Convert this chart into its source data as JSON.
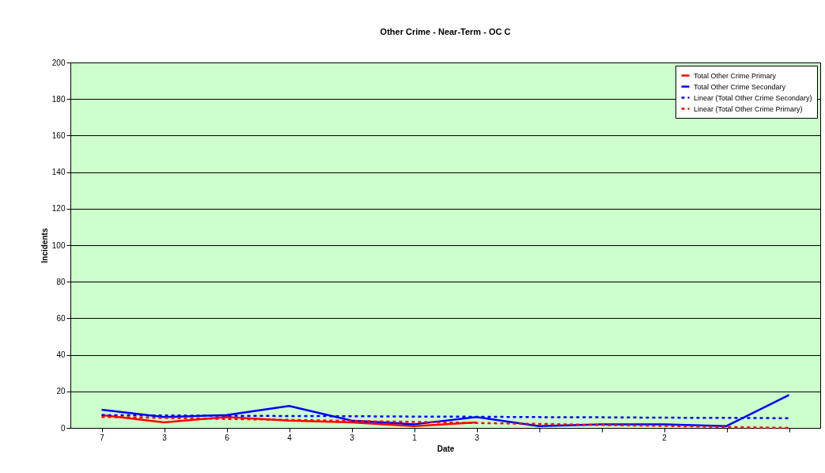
{
  "chart_data": {
    "type": "line",
    "title": "Other Crime - Near-Term - OC C",
    "xlabel": "Date",
    "ylabel": "Incidents",
    "categories": [
      "7",
      "3",
      "6",
      "4",
      "3",
      "1",
      "3",
      null,
      null,
      "2",
      null,
      null
    ],
    "series": [
      {
        "name": "Total Other Crime Primary",
        "color": "#ff0000",
        "values": [
          7,
          3,
          6,
          4,
          3,
          1,
          3,
          null,
          null,
          null,
          null,
          null
        ]
      },
      {
        "name": "Total Other Crime Secondary",
        "color": "#0000ff",
        "values": [
          10,
          6,
          7,
          12,
          4,
          2,
          6,
          1,
          2,
          2,
          1,
          18
        ]
      },
      {
        "name": "Linear (Total Other Crime Secondary)",
        "color": "#0000ff",
        "line_style": "dashed",
        "values": [
          7.0,
          6.8,
          6.7,
          6.5,
          6.4,
          6.2,
          6.1,
          5.9,
          5.8,
          5.6,
          5.5,
          5.3
        ]
      },
      {
        "name": "Linear (Total Other Crime Primary)",
        "color": "#ff0000",
        "line_style": "dashed",
        "values": [
          6.0,
          5.5,
          4.9,
          4.4,
          3.8,
          3.3,
          2.7,
          2.2,
          1.6,
          1.1,
          0.5,
          0.0
        ]
      }
    ],
    "ylim": [
      0,
      200
    ],
    "yticks": [
      0,
      20,
      40,
      60,
      80,
      100,
      120,
      140,
      160,
      180,
      200
    ],
    "grid": "y",
    "legend": "top right"
  }
}
